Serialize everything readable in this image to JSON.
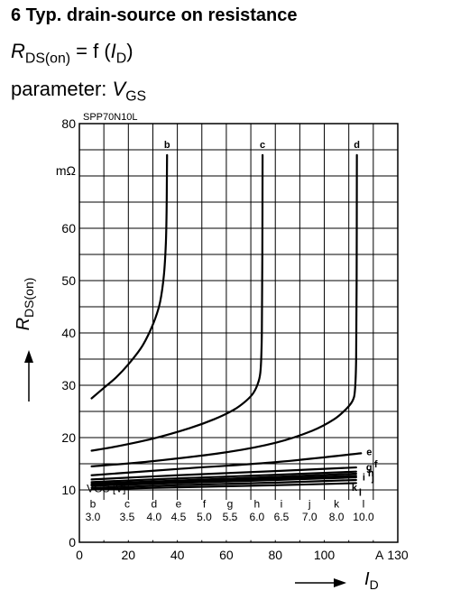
{
  "header": {
    "title": "6 Typ. drain-source on resistance",
    "formula": {
      "lhs_main": "R",
      "lhs_sub": "DS(on)",
      "eq": " = f (",
      "var_main": "I",
      "var_sub": "D",
      "close": ")"
    },
    "parameter": {
      "prefix": "parameter: ",
      "main": "V",
      "sub": "GS"
    }
  },
  "chart_data": {
    "type": "line",
    "device": "SPP70N10L",
    "xlabel": {
      "main": "I",
      "sub": "D"
    },
    "ylabel": {
      "main": "R",
      "sub": "DS(on)"
    },
    "xunit": "A",
    "yunit": "mΩ",
    "xlim": [
      0,
      130
    ],
    "ylim": [
      0,
      80
    ],
    "xticks": [
      "0",
      "20",
      "40",
      "60",
      "80",
      "100",
      "",
      "130"
    ],
    "yticks": [
      "0",
      "10",
      "20",
      "30",
      "40",
      "50",
      "60",
      "",
      "80"
    ],
    "grid": true,
    "vgs_table": {
      "label": "VGS [V] =",
      "letters": [
        "b",
        "c",
        "d",
        "e",
        "f",
        "g",
        "h",
        "i",
        "j",
        "k",
        "l"
      ],
      "values": [
        "3.0",
        "3.5",
        "4.0",
        "4.5",
        "5.0",
        "5.5",
        "6.0",
        "6.5",
        "7.0",
        "8.0",
        "10.0"
      ]
    },
    "series": [
      {
        "name": "b",
        "x": [
          5,
          10,
          15,
          20,
          25,
          28,
          31,
          33,
          34.5,
          35.3,
          35.6,
          35.7,
          35.8
        ],
        "y": [
          27.5,
          29.5,
          31.5,
          34,
          37,
          39.5,
          42.8,
          46,
          51,
          57,
          63,
          68,
          74
        ]
      },
      {
        "name": "c",
        "x": [
          5,
          15,
          30,
          45,
          55,
          63,
          68,
          71,
          73,
          74,
          74.5,
          74.7,
          74.8
        ],
        "y": [
          17.5,
          18.3,
          19.8,
          21.8,
          23.5,
          25.3,
          27,
          28.5,
          30.5,
          33,
          40,
          55,
          74
        ]
      },
      {
        "name": "d",
        "x": [
          5,
          30,
          60,
          80,
          95,
          104,
          109,
          111.5,
          112.5,
          113,
          113.2,
          113.3
        ],
        "y": [
          14.5,
          15.5,
          17.2,
          19,
          21.3,
          23.5,
          25.5,
          27,
          29,
          35,
          50,
          74
        ]
      },
      {
        "name": "e",
        "x": [
          5,
          40,
          80,
          115
        ],
        "y": [
          12.8,
          14,
          15.3,
          17
        ]
      },
      {
        "name": "f",
        "x": [
          5,
          40,
          80,
          113
        ],
        "y": [
          12,
          12.8,
          13.6,
          14.3
        ]
      },
      {
        "name": "g",
        "x": [
          5,
          40,
          80,
          113
        ],
        "y": [
          11.5,
          12.2,
          12.9,
          13.5
        ]
      },
      {
        "name": "h",
        "x": [
          5,
          40,
          80,
          113
        ],
        "y": [
          11.2,
          11.8,
          12.5,
          13.1
        ]
      },
      {
        "name": "i",
        "x": [
          5,
          40,
          80,
          113
        ],
        "y": [
          11,
          11.6,
          12.2,
          12.7
        ]
      },
      {
        "name": "j",
        "x": [
          5,
          40,
          80,
          113
        ],
        "y": [
          10.8,
          11.3,
          11.9,
          12.4
        ]
      },
      {
        "name": "k",
        "x": [
          5,
          40,
          80,
          113
        ],
        "y": [
          10.4,
          10.9,
          11.4,
          11.9
        ]
      },
      {
        "name": "l",
        "x": [
          5,
          40,
          80,
          113
        ],
        "y": [
          10.1,
          10.5,
          10.9,
          11.3
        ]
      }
    ]
  }
}
